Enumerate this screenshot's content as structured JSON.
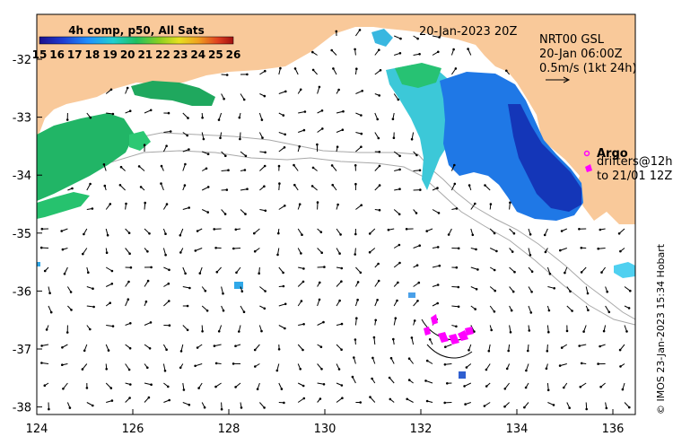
{
  "colorbar": {
    "title": "4h comp, p50, All Sats",
    "ticks": [
      "15",
      "16",
      "17",
      "18",
      "19",
      "20",
      "21",
      "22",
      "23",
      "24",
      "25",
      "26"
    ]
  },
  "date_label": "20-Jan-2023 20Z",
  "current_legend": {
    "line1": "NRT00 GSL",
    "line2": "20-Jan 06:00Z",
    "line3": "0.5m/s (1kt 24h)"
  },
  "drifter_legend": {
    "argo": "Argo",
    "line1": "drifters@12h",
    "line2": "to 21/01 12Z"
  },
  "credit": "© IMOS 23-Jan-2023 15:34 Hobart",
  "axes": {
    "x_ticks": [
      "124",
      "126",
      "128",
      "130",
      "132",
      "134",
      "136"
    ],
    "y_ticks": [
      "-32",
      "-33",
      "-34",
      "-35",
      "-36",
      "-37",
      "-38"
    ]
  },
  "colors": {
    "land": "#f9c99a",
    "sea": "#ffffff",
    "argo": "#ff00ff"
  }
}
